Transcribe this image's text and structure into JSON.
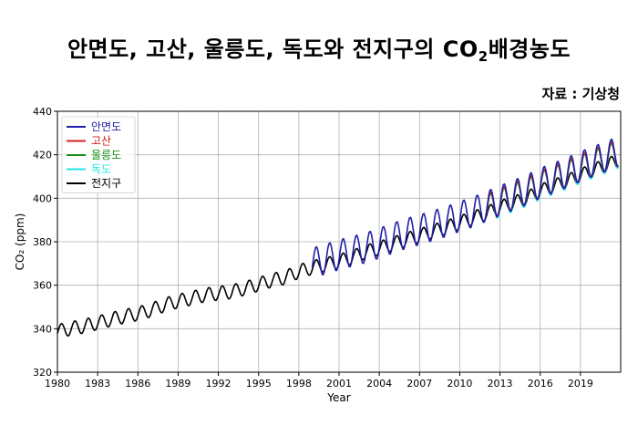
{
  "header": {
    "title_main": "안면도, 고산, 울릉도, 독도와 전지구의 CO",
    "title_sub": "2",
    "title_end": "배경농도",
    "source": "자료 : 기상청"
  },
  "chart_data": {
    "type": "line",
    "xlabel": "Year",
    "ylabel": "CO₂ (ppm)",
    "xlim": [
      1980,
      2022
    ],
    "ylim": [
      320,
      440
    ],
    "x_ticks": [
      1980,
      1983,
      1986,
      1989,
      1992,
      1995,
      1998,
      2001,
      2004,
      2007,
      2010,
      2013,
      2016,
      2019
    ],
    "y_ticks": [
      320,
      340,
      360,
      380,
      400,
      420,
      440
    ],
    "grid": true,
    "legend_position": "top-left",
    "series": [
      {
        "name": "안면도",
        "color": "#1f1fa8",
        "x_range": [
          1999.0,
          2021.9
        ],
        "values": [
          [
            1999,
            370.2
          ],
          [
            2000,
            372.0
          ],
          [
            2001,
            374.0
          ],
          [
            2002,
            375.6
          ],
          [
            2003,
            377.2
          ],
          [
            2004,
            379.3
          ],
          [
            2005,
            381.6
          ],
          [
            2006,
            383.8
          ],
          [
            2007,
            385.5
          ],
          [
            2008,
            387.4
          ],
          [
            2009,
            389.3
          ],
          [
            2010,
            391.6
          ],
          [
            2011,
            393.7
          ],
          [
            2012,
            396.3
          ],
          [
            2013,
            398.9
          ],
          [
            2014,
            401.4
          ],
          [
            2015,
            403.8
          ],
          [
            2016,
            407.0
          ],
          [
            2017,
            409.3
          ],
          [
            2018,
            411.8
          ],
          [
            2019,
            414.6
          ],
          [
            2020,
            417.0
          ],
          [
            2021,
            419.5
          ]
        ]
      },
      {
        "name": "고산",
        "color": "#d62020",
        "x_range": [
          2012.0,
          2021.9
        ],
        "values": [
          [
            2012,
            395.8
          ],
          [
            2013,
            398.5
          ],
          [
            2014,
            401.0
          ],
          [
            2015,
            403.4
          ],
          [
            2016,
            406.5
          ],
          [
            2017,
            408.9
          ],
          [
            2018,
            411.3
          ],
          [
            2019,
            414.0
          ],
          [
            2020,
            416.5
          ],
          [
            2021,
            419.0
          ]
        ]
      },
      {
        "name": "울릉도",
        "color": "#1a8f1a",
        "x_range": [
          2012.0,
          2021.9
        ],
        "values": [
          [
            2012,
            395.5
          ],
          [
            2013,
            398.0
          ],
          [
            2014,
            400.6
          ],
          [
            2015,
            403.0
          ],
          [
            2016,
            406.2
          ],
          [
            2017,
            408.6
          ],
          [
            2018,
            411.0
          ],
          [
            2019,
            413.7
          ],
          [
            2020,
            416.1
          ],
          [
            2021,
            418.6
          ]
        ]
      },
      {
        "name": "독도",
        "color": "#22e6e6",
        "x_range": [
          2012.0,
          2021.9
        ],
        "values": [
          [
            2012,
            395.2
          ],
          [
            2013,
            397.8
          ],
          [
            2014,
            400.3
          ],
          [
            2015,
            402.7
          ],
          [
            2016,
            405.8
          ],
          [
            2017,
            408.2
          ],
          [
            2018,
            410.6
          ],
          [
            2019,
            413.3
          ],
          [
            2020,
            415.8
          ],
          [
            2021,
            418.2
          ]
        ]
      },
      {
        "name": "전지구",
        "color": "#000000",
        "x_range": [
          1980.0,
          2021.9
        ],
        "values": [
          [
            1980,
            338.8
          ],
          [
            1981,
            340.1
          ],
          [
            1982,
            341.2
          ],
          [
            1983,
            342.7
          ],
          [
            1984,
            344.3
          ],
          [
            1985,
            345.7
          ],
          [
            1986,
            346.9
          ],
          [
            1987,
            348.6
          ],
          [
            1988,
            351.0
          ],
          [
            1989,
            352.7
          ],
          [
            1990,
            354.0
          ],
          [
            1991,
            355.5
          ],
          [
            1992,
            356.3
          ],
          [
            1993,
            357.0
          ],
          [
            1994,
            358.6
          ],
          [
            1995,
            360.4
          ],
          [
            1996,
            362.3
          ],
          [
            1997,
            363.6
          ],
          [
            1998,
            366.3
          ],
          [
            1999,
            368.1
          ],
          [
            2000,
            369.5
          ],
          [
            2001,
            371.0
          ],
          [
            2002,
            373.0
          ],
          [
            2003,
            375.3
          ],
          [
            2004,
            377.0
          ],
          [
            2005,
            379.0
          ],
          [
            2006,
            381.0
          ],
          [
            2007,
            382.8
          ],
          [
            2008,
            384.8
          ],
          [
            2009,
            386.6
          ],
          [
            2010,
            388.8
          ],
          [
            2011,
            390.9
          ],
          [
            2012,
            393.1
          ],
          [
            2013,
            395.8
          ],
          [
            2014,
            397.7
          ],
          [
            2015,
            400.0
          ],
          [
            2016,
            403.3
          ],
          [
            2017,
            405.5
          ],
          [
            2018,
            407.8
          ],
          [
            2019,
            410.5
          ],
          [
            2020,
            412.9
          ],
          [
            2021,
            415.3
          ]
        ]
      }
    ]
  }
}
